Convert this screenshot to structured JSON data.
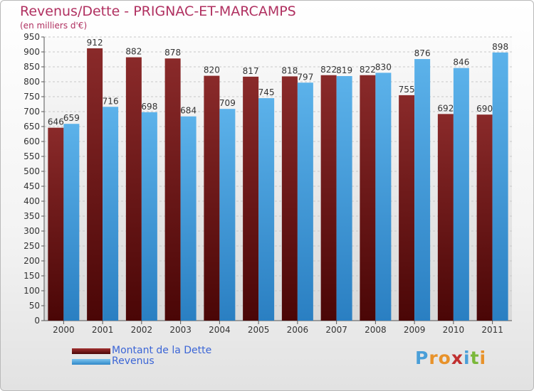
{
  "chart_data": {
    "type": "bar",
    "title": "Revenus/Dette - PRIGNAC-ET-MARCAMPS",
    "subtitle": "(en milliers d'€)",
    "categories": [
      "2000",
      "2001",
      "2002",
      "2003",
      "2004",
      "2005",
      "2006",
      "2007",
      "2008",
      "2009",
      "2010",
      "2011"
    ],
    "series": [
      {
        "name": "Montant de la Dette",
        "color": "#7a1a1a",
        "values": [
          646,
          912,
          882,
          878,
          820,
          817,
          818,
          822,
          822,
          755,
          692,
          690
        ]
      },
      {
        "name": "Revenus",
        "color": "#4aa3e0",
        "values": [
          659,
          716,
          698,
          684,
          709,
          745,
          797,
          819,
          830,
          876,
          846,
          898
        ]
      }
    ],
    "ylim": [
      0,
      950
    ],
    "yticks": [
      0,
      50,
      100,
      150,
      200,
      250,
      300,
      350,
      400,
      450,
      500,
      550,
      600,
      650,
      700,
      750,
      800,
      850,
      900,
      950
    ],
    "grid": true,
    "legend_position": "bottom-left"
  },
  "logo": {
    "letters": [
      "P",
      "r",
      "o",
      "x",
      "i",
      "t",
      "i"
    ],
    "colors": [
      "#4a9fd8",
      "#e8922a",
      "#e8922a",
      "#c03030",
      "#4a9fd8",
      "#7ab83a",
      "#e8922a"
    ]
  }
}
